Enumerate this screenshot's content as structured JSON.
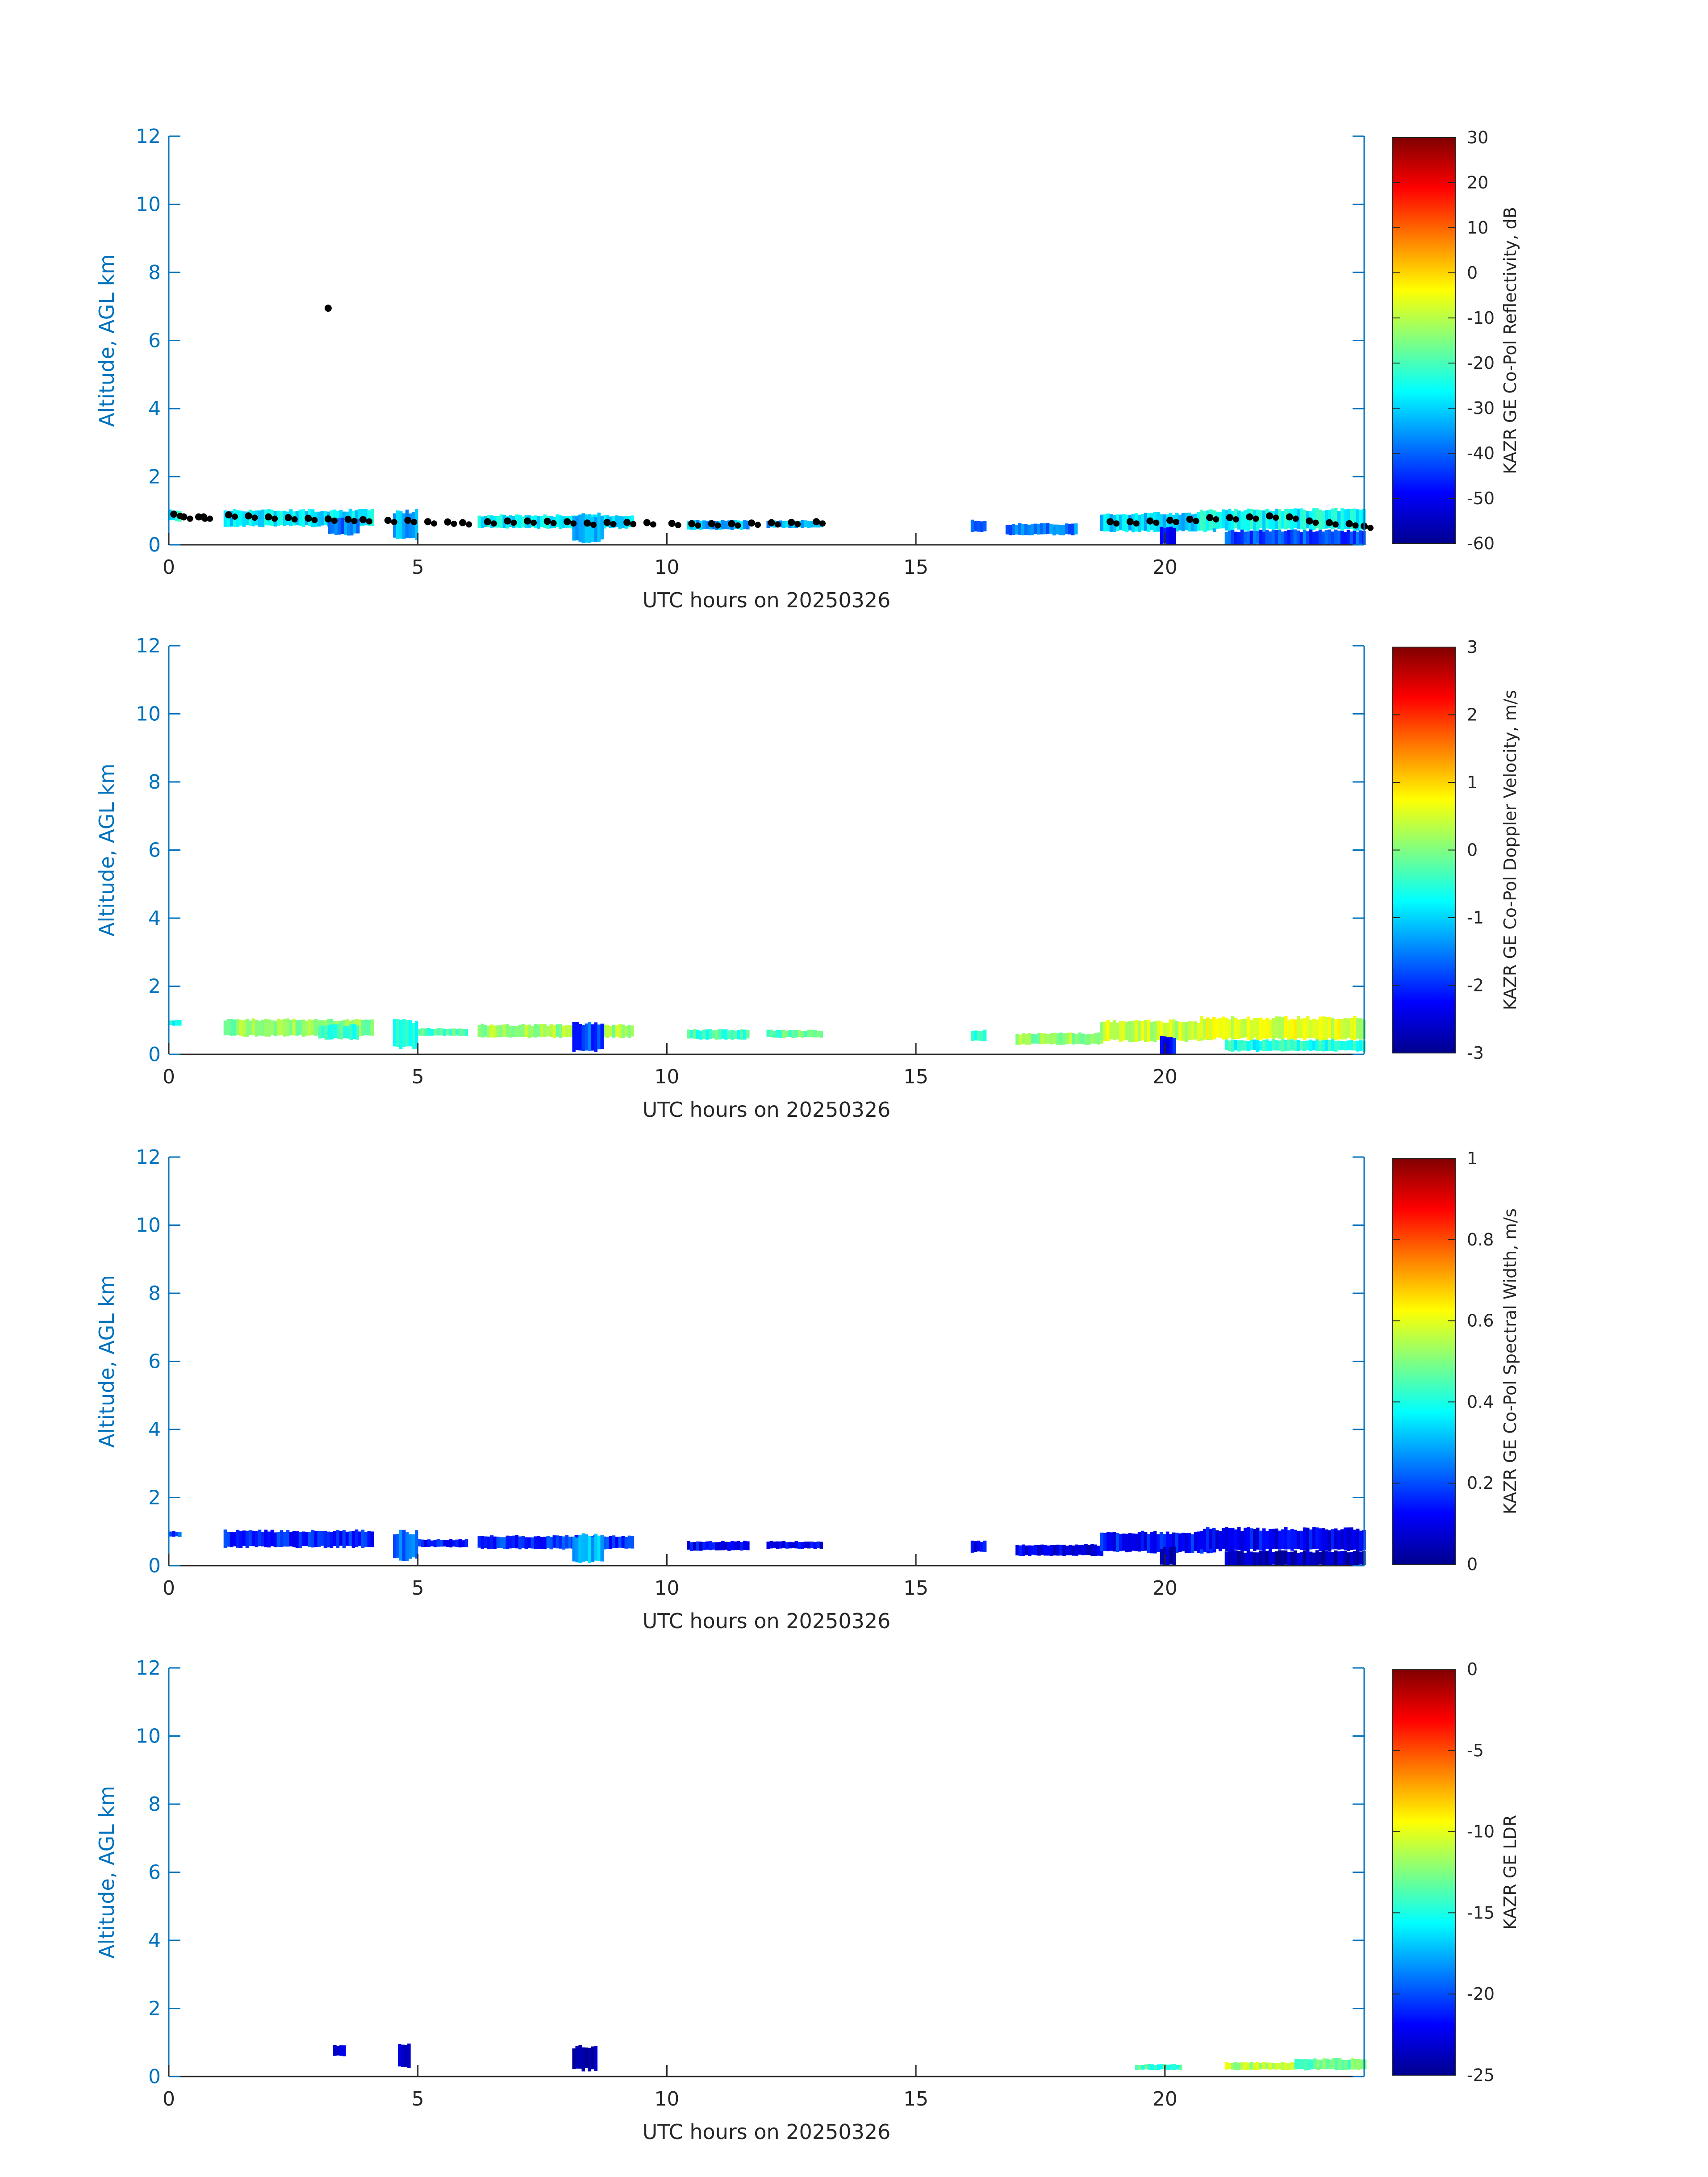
{
  "colors": {
    "axis_blue": "#0072bd",
    "axis_dark": "#262626",
    "jet": [
      "#00008f",
      "#0000ff",
      "#0080ff",
      "#00ffff",
      "#80ff80",
      "#ffff00",
      "#ff8000",
      "#ff0000",
      "#800000"
    ],
    "overlay": "#000000"
  },
  "chart_data": [
    {
      "type": "heatmap",
      "xlabel": "UTC hours on 20250326",
      "ylabel": "Altitude, AGL km",
      "xlim": [
        0,
        24
      ],
      "ylim": [
        0,
        12
      ],
      "xticks": [
        0,
        5,
        10,
        15,
        20
      ],
      "yticks": [
        0,
        2,
        4,
        6,
        8,
        10,
        12
      ],
      "colorbar": {
        "label": "KAZR GE Co-Pol Reflectivity, dB",
        "range": [
          -60,
          30
        ],
        "ticks": [
          -60,
          -50,
          -40,
          -30,
          -20,
          -10,
          0,
          10,
          20,
          30
        ]
      },
      "overlay_points": {
        "color": "black",
        "points": [
          [
            0.1,
            0.9
          ],
          [
            0.3,
            0.82
          ],
          [
            0.6,
            0.82
          ],
          [
            0.7,
            0.82
          ],
          [
            1.2,
            0.88
          ],
          [
            1.6,
            0.85
          ],
          [
            2.0,
            0.82
          ],
          [
            2.4,
            0.8
          ],
          [
            2.8,
            0.78
          ],
          [
            3.2,
            0.76
          ],
          [
            3.6,
            0.75
          ],
          [
            3.9,
            0.74
          ],
          [
            4.4,
            0.72
          ],
          [
            4.8,
            0.72
          ],
          [
            5.2,
            0.68
          ],
          [
            5.6,
            0.67
          ],
          [
            5.9,
            0.65
          ],
          [
            6.4,
            0.68
          ],
          [
            6.8,
            0.7
          ],
          [
            7.2,
            0.7
          ],
          [
            7.6,
            0.69
          ],
          [
            8.0,
            0.68
          ],
          [
            8.4,
            0.64
          ],
          [
            8.8,
            0.66
          ],
          [
            9.2,
            0.66
          ],
          [
            9.6,
            0.65
          ],
          [
            10.1,
            0.63
          ],
          [
            10.5,
            0.62
          ],
          [
            10.9,
            0.62
          ],
          [
            11.3,
            0.62
          ],
          [
            11.7,
            0.64
          ],
          [
            12.1,
            0.65
          ],
          [
            12.5,
            0.66
          ],
          [
            13.0,
            0.68
          ],
          [
            3.2,
            6.95
          ],
          [
            18.9,
            0.68
          ],
          [
            19.3,
            0.68
          ],
          [
            19.7,
            0.7
          ],
          [
            20.1,
            0.72
          ],
          [
            20.5,
            0.75
          ],
          [
            20.9,
            0.8
          ],
          [
            21.3,
            0.8
          ],
          [
            21.7,
            0.82
          ],
          [
            22.1,
            0.85
          ],
          [
            22.5,
            0.82
          ],
          [
            22.9,
            0.7
          ],
          [
            23.3,
            0.65
          ],
          [
            23.7,
            0.62
          ],
          [
            24.0,
            0.55
          ]
        ]
      },
      "segments": [
        {
          "x0": 0.0,
          "x1": 0.25,
          "y0": 0.7,
          "y1": 1.0,
          "v": -25
        },
        {
          "x0": 1.1,
          "x1": 4.1,
          "y0": 0.55,
          "y1": 1.0,
          "v": -28
        },
        {
          "x0": 3.2,
          "x1": 3.8,
          "y0": 0.3,
          "y1": 0.75,
          "v": -38
        },
        {
          "x0": 4.5,
          "x1": 5.0,
          "y0": 0.2,
          "y1": 0.95,
          "v": -33
        },
        {
          "x0": 6.2,
          "x1": 9.3,
          "y0": 0.5,
          "y1": 0.85,
          "v": -27
        },
        {
          "x0": 8.1,
          "x1": 8.7,
          "y0": 0.1,
          "y1": 0.85,
          "v": -33
        },
        {
          "x0": 10.4,
          "x1": 11.6,
          "y0": 0.45,
          "y1": 0.7,
          "v": -33
        },
        {
          "x0": 12.0,
          "x1": 13.1,
          "y0": 0.5,
          "y1": 0.7,
          "v": -33
        },
        {
          "x0": 16.1,
          "x1": 16.4,
          "y0": 0.4,
          "y1": 0.7,
          "v": -38
        },
        {
          "x0": 16.8,
          "x1": 18.2,
          "y0": 0.3,
          "y1": 0.6,
          "v": -38
        },
        {
          "x0": 18.7,
          "x1": 21.0,
          "y0": 0.4,
          "y1": 0.9,
          "v": -30
        },
        {
          "x0": 19.9,
          "x1": 20.2,
          "y0": 0.0,
          "y1": 0.5,
          "v": -48
        },
        {
          "x0": 20.7,
          "x1": 24.0,
          "y0": 0.45,
          "y1": 1.0,
          "v": -26
        },
        {
          "x0": 21.2,
          "x1": 24.0,
          "y0": 0.0,
          "y1": 0.4,
          "v": -42
        }
      ]
    },
    {
      "type": "heatmap",
      "xlabel": "UTC hours on 20250326",
      "ylabel": "Altitude, AGL km",
      "xlim": [
        0,
        24
      ],
      "ylim": [
        0,
        12
      ],
      "xticks": [
        0,
        5,
        10,
        15,
        20
      ],
      "yticks": [
        0,
        2,
        4,
        6,
        8,
        10,
        12
      ],
      "colorbar": {
        "label": "KAZR GE Co-Pol Doppler Velocity, m/s",
        "range": [
          -3,
          3
        ],
        "ticks": [
          -3,
          -2,
          -1,
          0,
          1,
          2,
          3
        ]
      },
      "segments": [
        {
          "x0": 0.0,
          "x1": 0.2,
          "y0": 0.85,
          "y1": 1.0,
          "v": -0.6
        },
        {
          "x0": 1.1,
          "x1": 4.1,
          "y0": 0.55,
          "y1": 1.0,
          "v": 0.1
        },
        {
          "x0": 3.0,
          "x1": 3.8,
          "y0": 0.45,
          "y1": 0.85,
          "v": -0.5
        },
        {
          "x0": 4.5,
          "x1": 5.0,
          "y0": 0.2,
          "y1": 0.95,
          "v": -0.7
        },
        {
          "x0": 5.0,
          "x1": 6.0,
          "y0": 0.55,
          "y1": 0.75,
          "v": -0.3
        },
        {
          "x0": 6.2,
          "x1": 9.3,
          "y0": 0.5,
          "y1": 0.85,
          "v": 0.2
        },
        {
          "x0": 8.1,
          "x1": 8.7,
          "y0": 0.1,
          "y1": 0.85,
          "v": -1.8
        },
        {
          "x0": 10.4,
          "x1": 11.6,
          "y0": 0.45,
          "y1": 0.7,
          "v": -0.4
        },
        {
          "x0": 12.0,
          "x1": 13.1,
          "y0": 0.5,
          "y1": 0.7,
          "v": -0.2
        },
        {
          "x0": 16.1,
          "x1": 16.4,
          "y0": 0.4,
          "y1": 0.7,
          "v": -0.5
        },
        {
          "x0": 17.0,
          "x1": 18.7,
          "y0": 0.3,
          "y1": 0.6,
          "v": 0.1
        },
        {
          "x0": 18.7,
          "x1": 21.0,
          "y0": 0.4,
          "y1": 0.95,
          "v": 0.4
        },
        {
          "x0": 19.9,
          "x1": 20.2,
          "y0": 0.0,
          "y1": 0.5,
          "v": -2.2
        },
        {
          "x0": 20.7,
          "x1": 24.0,
          "y0": 0.45,
          "y1": 1.05,
          "v": 0.5
        },
        {
          "x0": 21.2,
          "x1": 24.0,
          "y0": 0.1,
          "y1": 0.4,
          "v": -0.6
        }
      ]
    },
    {
      "type": "heatmap",
      "xlabel": "UTC hours on 20250326",
      "ylabel": "Altitude, AGL km",
      "xlim": [
        0,
        24
      ],
      "ylim": [
        0,
        12
      ],
      "xticks": [
        0,
        5,
        10,
        15,
        20
      ],
      "yticks": [
        0,
        2,
        4,
        6,
        8,
        10,
        12
      ],
      "colorbar": {
        "label": "KAZR GE Co-Pol Spectral Width, m/s",
        "range": [
          0,
          1
        ],
        "ticks": [
          0,
          0.2,
          0.4,
          0.6,
          0.8,
          1
        ]
      },
      "segments": [
        {
          "x0": 0.0,
          "x1": 0.2,
          "y0": 0.85,
          "y1": 1.0,
          "v": 0.2
        },
        {
          "x0": 1.1,
          "x1": 4.1,
          "y0": 0.55,
          "y1": 1.0,
          "v": 0.16
        },
        {
          "x0": 4.5,
          "x1": 5.0,
          "y0": 0.2,
          "y1": 0.95,
          "v": 0.22
        },
        {
          "x0": 5.0,
          "x1": 6.0,
          "y0": 0.55,
          "y1": 0.75,
          "v": 0.15
        },
        {
          "x0": 6.2,
          "x1": 9.3,
          "y0": 0.5,
          "y1": 0.85,
          "v": 0.17
        },
        {
          "x0": 8.1,
          "x1": 8.7,
          "y0": 0.1,
          "y1": 0.85,
          "v": 0.3
        },
        {
          "x0": 10.4,
          "x1": 11.6,
          "y0": 0.45,
          "y1": 0.7,
          "v": 0.12
        },
        {
          "x0": 12.0,
          "x1": 13.1,
          "y0": 0.5,
          "y1": 0.7,
          "v": 0.12
        },
        {
          "x0": 16.1,
          "x1": 16.4,
          "y0": 0.4,
          "y1": 0.7,
          "v": 0.12
        },
        {
          "x0": 17.0,
          "x1": 18.7,
          "y0": 0.3,
          "y1": 0.6,
          "v": 0.1
        },
        {
          "x0": 18.7,
          "x1": 21.0,
          "y0": 0.4,
          "y1": 0.95,
          "v": 0.14
        },
        {
          "x0": 19.9,
          "x1": 20.2,
          "y0": 0.0,
          "y1": 0.5,
          "v": 0.05
        },
        {
          "x0": 20.7,
          "x1": 24.0,
          "y0": 0.45,
          "y1": 1.05,
          "v": 0.12
        },
        {
          "x0": 21.2,
          "x1": 24.0,
          "y0": 0.0,
          "y1": 0.4,
          "v": 0.04
        }
      ]
    },
    {
      "type": "heatmap",
      "xlabel": "UTC hours on 20250326",
      "ylabel": "Altitude, AGL km",
      "xlim": [
        0,
        24
      ],
      "ylim": [
        0,
        12
      ],
      "xticks": [
        0,
        5,
        10,
        15,
        20
      ],
      "yticks": [
        0,
        2,
        4,
        6,
        8,
        10,
        12
      ],
      "colorbar": {
        "label": "KAZR GE LDR",
        "range": [
          -25,
          0
        ],
        "ticks": [
          -25,
          -20,
          -15,
          -10,
          -5,
          0
        ]
      },
      "segments": [
        {
          "x0": 3.3,
          "x1": 3.5,
          "y0": 0.6,
          "y1": 0.9,
          "v": -22
        },
        {
          "x0": 4.6,
          "x1": 4.8,
          "y0": 0.3,
          "y1": 0.9,
          "v": -23
        },
        {
          "x0": 8.1,
          "x1": 8.6,
          "y0": 0.2,
          "y1": 0.85,
          "v": -24.5
        },
        {
          "x0": 19.4,
          "x1": 20.3,
          "y0": 0.2,
          "y1": 0.35,
          "v": -14
        },
        {
          "x0": 21.2,
          "x1": 22.6,
          "y0": 0.2,
          "y1": 0.4,
          "v": -11
        },
        {
          "x0": 22.6,
          "x1": 24.0,
          "y0": 0.2,
          "y1": 0.5,
          "v": -13
        }
      ]
    }
  ]
}
